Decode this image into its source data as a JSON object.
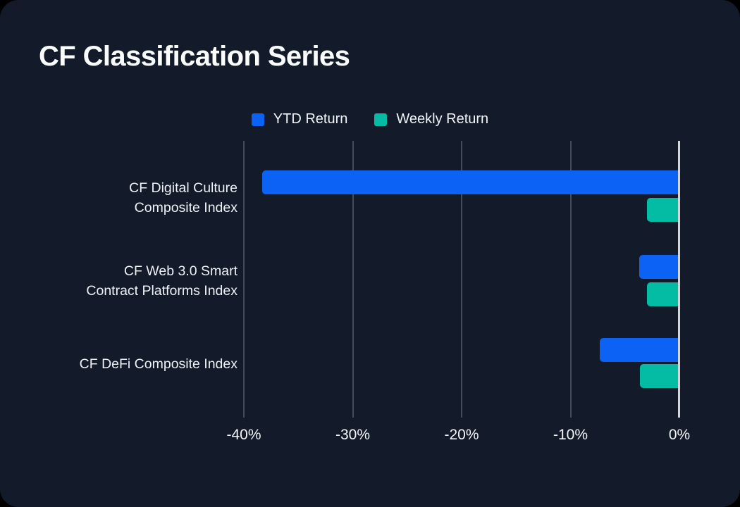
{
  "card": {
    "title": "CF Classification Series"
  },
  "legend": [
    {
      "label": "YTD Return",
      "color": "#0b62f4"
    },
    {
      "label": "Weekly Return",
      "color": "#04bca4"
    }
  ],
  "theme": {
    "page_background": "#000000",
    "card_background": "#131b2a",
    "grid_color": "#414c5c",
    "axis_color": "#d4d8de",
    "text_color": "#f2f4f7"
  },
  "chart_data": {
    "type": "bar",
    "orientation": "horizontal",
    "title": "CF Classification Series",
    "categories": [
      "CF Digital Culture Composite Index",
      "CF Web 3.0 Smart Contract Platforms Index",
      "CF DeFi Composite Index"
    ],
    "categories_wrapped": [
      [
        "CF Digital Culture",
        "Composite Index"
      ],
      [
        "CF Web 3.0 Smart",
        "Contract Platforms Index"
      ],
      [
        "CF DeFi Composite Index"
      ]
    ],
    "series": [
      {
        "name": "YTD Return",
        "color": "#0b62f4",
        "values": [
          -38.3,
          -3.7,
          -7.3
        ]
      },
      {
        "name": "Weekly Return",
        "color": "#04bca4",
        "values": [
          -3.0,
          -3.0,
          -3.6
        ]
      }
    ],
    "xlabel": "",
    "ylabel": "",
    "xlim": [
      -40,
      0
    ],
    "x_ticks": [
      {
        "label": "-40%",
        "value": -40
      },
      {
        "label": "-30%",
        "value": -30
      },
      {
        "label": "-20%",
        "value": -20
      },
      {
        "label": "-10%",
        "value": -10
      },
      {
        "label": "0%",
        "value": 0
      }
    ],
    "grid": true,
    "legend_position": "top-center"
  }
}
